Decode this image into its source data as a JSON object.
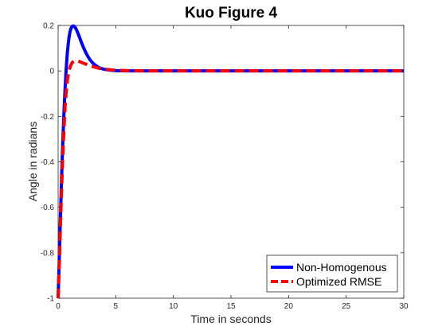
{
  "chart_data": {
    "type": "line",
    "title": "Kuo Figure 4",
    "xlabel": "Time in seconds",
    "ylabel": "Angle in radians",
    "xlim": [
      0,
      30
    ],
    "ylim": [
      -1,
      0.2
    ],
    "xticks": [
      0,
      5,
      10,
      15,
      20,
      25,
      30
    ],
    "yticks": [
      -1,
      -0.8,
      -0.6,
      -0.4,
      -0.2,
      0,
      0.2
    ],
    "xtick_labels": [
      "0",
      "5",
      "10",
      "15",
      "20",
      "25",
      "30"
    ],
    "ytick_labels": [
      "-1",
      "-0.8",
      "-0.6",
      "-0.4",
      "-0.2",
      "0",
      "0.2"
    ],
    "grid": false,
    "legend_position": "bottom-right",
    "series": [
      {
        "name": "Non-Homogenous",
        "color": "#0000ff",
        "style": "solid",
        "x": [
          0,
          0.1,
          0.2,
          0.3,
          0.4,
          0.5,
          0.6,
          0.7,
          0.8,
          0.9,
          1.0,
          1.1,
          1.2,
          1.3,
          1.4,
          1.5,
          1.6,
          1.7,
          1.8,
          1.9,
          2.0,
          2.2,
          2.4,
          2.6,
          2.8,
          3.0,
          3.3,
          3.6,
          4.0,
          4.5,
          5.0,
          5.5,
          6.0,
          7.0,
          8.0,
          10,
          15,
          20,
          25,
          30
        ],
        "y": [
          -1.0,
          -0.82,
          -0.64,
          -0.47,
          -0.32,
          -0.19,
          -0.08,
          0.01,
          0.08,
          0.13,
          0.165,
          0.185,
          0.195,
          0.198,
          0.196,
          0.19,
          0.18,
          0.168,
          0.155,
          0.142,
          0.128,
          0.103,
          0.081,
          0.062,
          0.047,
          0.035,
          0.022,
          0.013,
          0.007,
          0.003,
          0.001,
          0.0005,
          0.0,
          0.0,
          0.0,
          0.0,
          0.0,
          0.0,
          0.0,
          0.0
        ]
      },
      {
        "name": "Optimized RMSE",
        "color": "#ff0000",
        "style": "dashed",
        "x": [
          0,
          0.1,
          0.2,
          0.3,
          0.4,
          0.5,
          0.6,
          0.7,
          0.8,
          0.9,
          1.0,
          1.1,
          1.2,
          1.3,
          1.4,
          1.5,
          1.6,
          1.7,
          1.8,
          1.9,
          2.0,
          2.2,
          2.4,
          2.6,
          2.8,
          3.0,
          3.5,
          4.0,
          4.5,
          5.0,
          6.0,
          7.0,
          8.0,
          10,
          15,
          20,
          25,
          30
        ],
        "y": [
          -1.0,
          -0.85,
          -0.68,
          -0.52,
          -0.38,
          -0.26,
          -0.16,
          -0.09,
          -0.04,
          -0.01,
          0.01,
          0.025,
          0.035,
          0.04,
          0.043,
          0.045,
          0.045,
          0.044,
          0.042,
          0.04,
          0.038,
          0.034,
          0.03,
          0.026,
          0.022,
          0.019,
          0.012,
          0.008,
          0.005,
          0.003,
          0.001,
          0.0,
          0.0,
          0.0,
          0.0,
          0.0,
          0.0,
          0.0
        ]
      }
    ]
  }
}
